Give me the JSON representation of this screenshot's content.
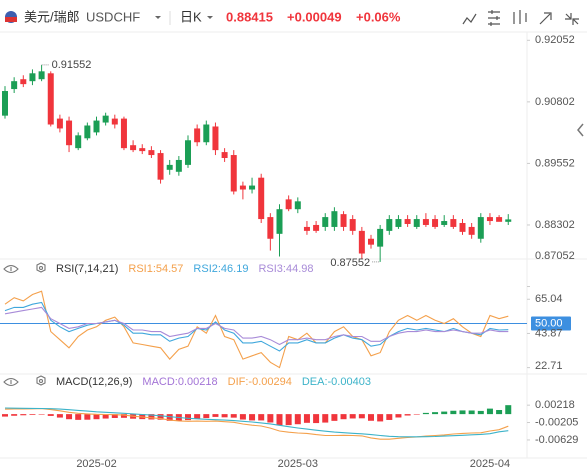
{
  "header": {
    "pair": "美元/瑞郎",
    "symbol": "USDCHF",
    "period": "日K",
    "price": "0.88415",
    "change": "+0.00049",
    "change_pct": "+0.06%"
  },
  "chart_data": [
    {
      "type": "candlestick",
      "categories": [
        null,
        null,
        null,
        null,
        null,
        null,
        null,
        null,
        null,
        null,
        "2025-02",
        null,
        null,
        null,
        null,
        null,
        null,
        null,
        null,
        null,
        null,
        null,
        null,
        null,
        null,
        null,
        null,
        null,
        null,
        null,
        null,
        null,
        "2025-03",
        null,
        null,
        null,
        null,
        null,
        null,
        null,
        null,
        null,
        null,
        null,
        null,
        null,
        null,
        null,
        null,
        null,
        null,
        null,
        null,
        "2025-04",
        null,
        null
      ],
      "open": [
        0.90522,
        0.91062,
        0.91262,
        0.91222,
        0.91262,
        0.91382,
        0.90462,
        0.90422,
        0.89862,
        0.90062,
        0.90182,
        0.90382,
        0.90462,
        0.90462,
        0.89922,
        0.89862,
        0.89822,
        0.89762,
        0.89422,
        0.89382,
        0.89522,
        0.90262,
        0.89982,
        0.90302,
        0.89782,
        0.89722,
        0.89102,
        0.89022,
        0.89262,
        0.88462,
        0.88122,
        0.88822,
        0.88622,
        0.88262,
        0.88302,
        0.88262,
        0.88262,
        0.88522,
        0.88422,
        0.88182,
        0.88022,
        0.87862,
        0.88182,
        0.88262,
        0.88422,
        0.88262,
        0.88422,
        0.88422,
        0.88302,
        0.88422,
        0.88342,
        0.88262,
        0.88022,
        0.88462,
        0.88462,
        0.88366
      ],
      "high": [
        0.91122,
        0.91302,
        0.91342,
        0.91462,
        0.91552,
        0.91422,
        0.90542,
        0.90502,
        0.90182,
        0.90382,
        0.90502,
        0.90582,
        0.90542,
        0.90502,
        0.90022,
        0.89942,
        0.89902,
        0.89822,
        0.89622,
        0.89702,
        0.90122,
        0.90342,
        0.90422,
        0.90382,
        0.89862,
        0.89822,
        0.89182,
        0.89262,
        0.89342,
        0.88542,
        0.88722,
        0.88902,
        0.88862,
        0.88382,
        0.88382,
        0.88542,
        0.88662,
        0.88582,
        0.88502,
        0.88262,
        0.88102,
        0.88302,
        0.88502,
        0.88502,
        0.88502,
        0.88502,
        0.88542,
        0.88502,
        0.88502,
        0.88502,
        0.88422,
        0.88342,
        0.88542,
        0.88542,
        0.88502,
        0.88522
      ],
      "low": [
        0.90462,
        0.90982,
        0.91102,
        0.91142,
        0.91222,
        0.90302,
        0.90182,
        0.89782,
        0.89822,
        0.90022,
        0.90122,
        0.90322,
        0.90262,
        0.89822,
        0.89782,
        0.89742,
        0.89662,
        0.89142,
        0.89322,
        0.89302,
        0.89462,
        0.89902,
        0.89922,
        0.89722,
        0.89582,
        0.88922,
        0.88822,
        0.88942,
        0.88342,
        0.87782,
        0.87662,
        0.88582,
        0.88542,
        0.88102,
        0.88142,
        0.88182,
        0.88182,
        0.88182,
        0.88102,
        0.87622,
        0.87822,
        0.87552,
        0.88102,
        0.88222,
        0.88262,
        0.88222,
        0.88262,
        0.88222,
        0.88262,
        0.88222,
        0.88102,
        0.88022,
        0.87942,
        0.88302,
        0.88382,
        0.88302
      ],
      "close": [
        0.91022,
        0.91222,
        0.91162,
        0.91382,
        0.91422,
        0.90342,
        0.90262,
        0.89922,
        0.90122,
        0.90322,
        0.90422,
        0.90522,
        0.90342,
        0.89862,
        0.89822,
        0.89802,
        0.89722,
        0.89222,
        0.89522,
        0.89622,
        0.90022,
        0.89982,
        0.90342,
        0.89822,
        0.89662,
        0.88982,
        0.89022,
        0.89102,
        0.88422,
        0.88022,
        0.88622,
        0.88622,
        0.88782,
        0.88182,
        0.88182,
        0.88462,
        0.88582,
        0.88262,
        0.88182,
        0.87722,
        0.87902,
        0.88222,
        0.88422,
        0.88422,
        0.88322,
        0.88422,
        0.88302,
        0.88262,
        0.88382,
        0.88262,
        0.88162,
        0.88102,
        0.88462,
        0.88382,
        0.88366,
        0.88415
      ],
      "up_color": "#1b9e55",
      "down_color": "#f0353c",
      "high_label": {
        "value": 0.91552,
        "label": "0.91552"
      },
      "low_label": {
        "value": 0.87552,
        "label": "0.87552"
      },
      "ylim": [
        0.8755,
        0.9218
      ],
      "yticks": [
        0.92052,
        0.90802,
        0.89552,
        0.88302,
        0.87052
      ]
    },
    {
      "type": "line",
      "title": "RSI(7,14,21)",
      "series": [
        {
          "name": "RSI1:54.57",
          "color": "#f4a04b",
          "values": [
            62,
            66,
            64,
            68,
            70,
            45,
            40,
            35,
            42,
            46,
            48,
            52,
            54,
            48,
            38,
            37,
            36,
            35,
            28,
            34,
            36,
            48,
            44,
            55,
            42,
            40,
            28,
            30,
            32,
            26,
            22.71,
            42,
            40,
            44,
            38,
            38,
            45,
            48,
            42,
            40,
            30,
            32,
            45,
            52,
            55,
            52,
            55,
            52,
            50,
            53,
            48,
            44,
            42,
            55,
            53,
            54.57
          ]
        },
        {
          "name": "RSI2:46.19",
          "color": "#3fa7dc",
          "values": [
            58,
            60,
            60,
            62,
            63,
            52,
            48,
            45,
            47,
            49,
            50,
            51,
            52,
            49,
            44,
            44,
            43,
            43,
            39,
            41,
            42,
            47,
            46,
            51,
            46,
            44,
            38,
            38,
            39,
            36,
            33,
            38,
            38,
            40,
            38,
            38,
            41,
            43,
            41,
            40,
            36,
            37,
            42,
            45,
            47,
            46,
            47,
            46,
            45,
            47,
            45,
            44,
            43,
            47,
            46,
            46.19
          ]
        },
        {
          "name": "RSI3:44.98",
          "color": "#a88bd8",
          "values": [
            56,
            57,
            58,
            59,
            60,
            53,
            50,
            47,
            48,
            50,
            50,
            51,
            52,
            50,
            46,
            46,
            45,
            45,
            42,
            43,
            44,
            47,
            47,
            50,
            47,
            46,
            41,
            41,
            42,
            40,
            37,
            40,
            40,
            41,
            40,
            40,
            42,
            43,
            42,
            42,
            39,
            39,
            42,
            44,
            45,
            45,
            46,
            45,
            45,
            46,
            45,
            44,
            44,
            46,
            45,
            44.98
          ]
        }
      ],
      "ylim": [
        20,
        72
      ],
      "yticks": [
        65.04,
        {
          "value": 50,
          "label": "50.00",
          "line_color": "#3d8fe0"
        },
        43.87,
        22.71
      ]
    },
    {
      "type": "combo",
      "title": "MACD(12,26,9)",
      "series": [
        {
          "name": "MACD:0.00218",
          "type": "bar",
          "color": "#a374d6",
          "up_color": "#1b9e55",
          "down_color": "#f0353c",
          "values": [
            -0.0006,
            -0.0004,
            -0.00028,
            -0.00018,
            -6e-05,
            -0.00044,
            -0.00084,
            -0.00124,
            -0.0014,
            -0.00136,
            -0.00124,
            -0.00108,
            -0.00094,
            -0.0009,
            -0.00112,
            -0.00122,
            -0.0013,
            -0.00136,
            -0.00164,
            -0.00164,
            -0.00146,
            -0.0011,
            -0.00096,
            -0.00068,
            -0.00078,
            -0.00086,
            -0.00132,
            -0.00154,
            -0.00154,
            -0.00204,
            -0.00274,
            -0.00268,
            -0.00246,
            -0.00212,
            -0.00218,
            -0.00206,
            -0.00164,
            -0.00124,
            -0.00106,
            -0.00102,
            -0.00162,
            -0.00178,
            -0.00142,
            -0.00082,
            -0.00034,
            -4e-05,
            0.0003,
            0.00048,
            0.00062,
            0.00082,
            0.0009,
            0.00088,
            0.00078,
            0.00134,
            0.001,
            0.00218
          ]
        },
        {
          "name": "DIF:-0.00294",
          "type": "line",
          "color": "#f4a04b",
          "values": [
            0.0012,
            0.00125,
            0.00128,
            0.0013,
            0.00135,
            0.0011,
            0.0008,
            0.00045,
            0.0002,
            5e-05,
            -5e-05,
            -0.0001,
            -0.00015,
            -0.00025,
            -0.0005,
            -0.0007,
            -0.0009,
            -0.0011,
            -0.00145,
            -0.00165,
            -0.00175,
            -0.0017,
            -0.00175,
            -0.0017,
            -0.00185,
            -0.002,
            -0.0024,
            -0.0027,
            -0.0029,
            -0.0034,
            -0.0041,
            -0.0044,
            -0.0046,
            -0.0047,
            -0.005,
            -0.0052,
            -0.0052,
            -0.00515,
            -0.0052,
            -0.0053,
            -0.0058,
            -0.0061,
            -0.0061,
            -0.0059,
            -0.0057,
            -0.00555,
            -0.00535,
            -0.0052,
            -0.00505,
            -0.00485,
            -0.0047,
            -0.0046,
            -0.00455,
            -0.0041,
            -0.0038,
            -0.00294
          ]
        },
        {
          "name": "DEA:-0.00403",
          "type": "line",
          "color": "#3cb3c9",
          "values": [
            0.0015,
            0.00145,
            0.00142,
            0.00139,
            0.00138,
            0.00132,
            0.00122,
            0.00107,
            0.0009,
            0.00073,
            0.00057,
            0.00044,
            0.00032,
            0.0002,
            6e-05,
            -9e-05,
            -0.00025,
            -0.00042,
            -0.00063,
            -0.00083,
            -0.00102,
            -0.00115,
            -0.00127,
            -0.00136,
            -0.00146,
            -0.00157,
            -0.00174,
            -0.00193,
            -0.00213,
            -0.00238,
            -0.00273,
            -0.00306,
            -0.00337,
            -0.00364,
            -0.00391,
            -0.00417,
            -0.00438,
            -0.00453,
            -0.00467,
            -0.00479,
            -0.00499,
            -0.00521,
            -0.00539,
            -0.00549,
            -0.00553,
            -0.00553,
            -0.0055,
            -0.00544,
            -0.00536,
            -0.00526,
            -0.00515,
            -0.00504,
            -0.00494,
            -0.00477,
            -0.0043,
            -0.00403
          ]
        }
      ],
      "ylim": [
        -0.0102,
        0.0049
      ],
      "yticks": [
        0.00218,
        -0.00205,
        -0.00629
      ]
    }
  ]
}
